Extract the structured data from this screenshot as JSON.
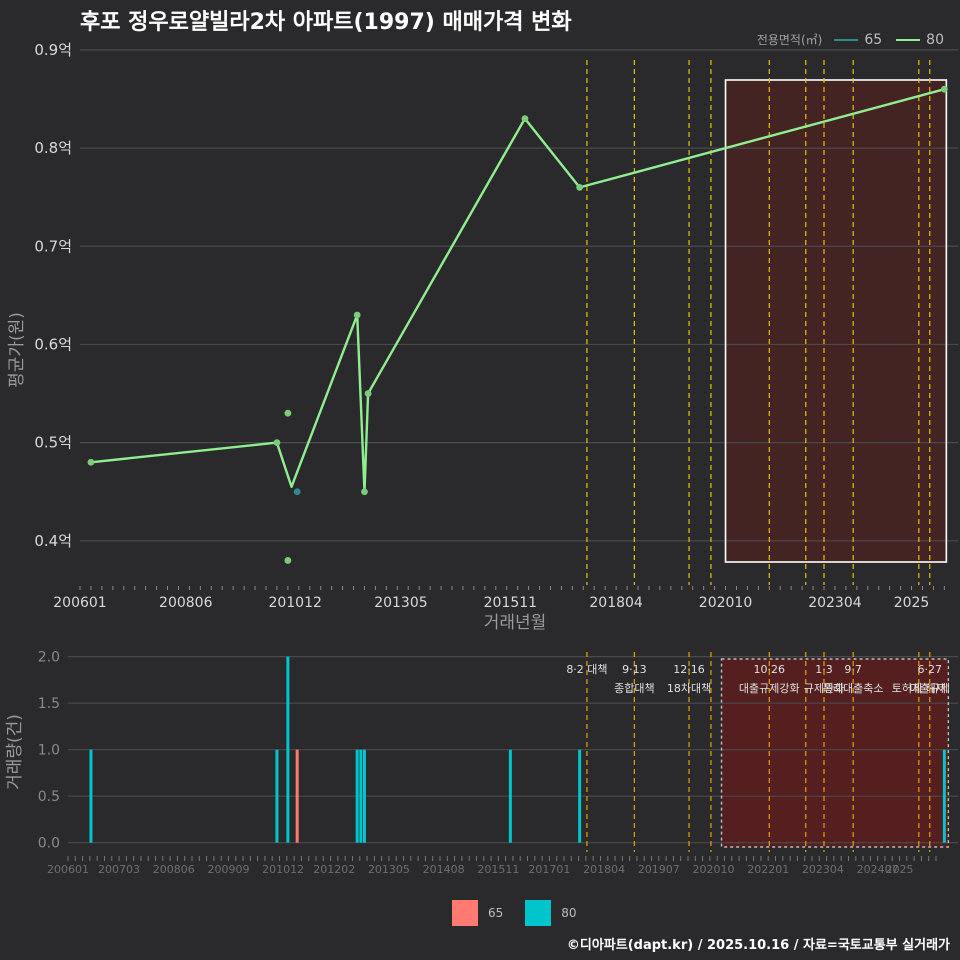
{
  "title": "후포 정우로얄빌라2차 아파트(1997) 매매가격 변화",
  "footer": "©디아파트(dapt.kr) / 2025.10.16 / 자료=국토교통부 실거래가",
  "colors": {
    "bg": "#2a2a2c",
    "grid": "#4a4a4d",
    "s65_price": "#2e8b8b",
    "s80_price": "#90ee90",
    "s65_volume": "#ff7b72",
    "s80_volume": "#00c5cd",
    "policy_line": "#e6c300",
    "highlight_fill": "#5a1e1e",
    "axis_text": "#d8d8d8"
  },
  "chart_data": [
    {
      "type": "line",
      "title": "평균가격",
      "xlabel": "거래년월",
      "ylabel": "평균가(원)",
      "ylim": [
        0.355,
        0.905
      ],
      "yticks": [
        0.4,
        0.5,
        0.6,
        0.7,
        0.8,
        0.9
      ],
      "ytick_labels": [
        "0.4억",
        "0.5억",
        "0.6억",
        "0.7억",
        "0.8억",
        "0.9억"
      ],
      "xticks": [
        "200601",
        "200806",
        "201012",
        "201305",
        "201511",
        "201804",
        "202010",
        "202304",
        "2025"
      ],
      "legend_title": "전용면적(㎡)",
      "legend_labels": [
        "65",
        "80"
      ],
      "series": [
        {
          "name": "65",
          "points": [
            [
              "2010-12",
              0.45
            ]
          ]
        },
        {
          "name": "80",
          "line": [
            [
              "2006-04",
              0.48
            ],
            [
              "2010-07",
              0.5
            ],
            [
              "2010-11",
              0.455
            ],
            [
              "2012-05",
              0.63
            ],
            [
              "2012-07",
              0.45
            ],
            [
              "2012-08",
              0.55
            ],
            [
              "2016-03",
              0.83
            ],
            [
              "2017-06",
              0.76
            ],
            [
              "2025-10",
              0.86
            ]
          ],
          "points": [
            [
              "2006-04",
              0.48
            ],
            [
              "2010-07",
              0.5
            ],
            [
              "2010-10",
              0.53
            ],
            [
              "2010-10",
              0.38
            ],
            [
              "2012-05",
              0.63
            ],
            [
              "2012-07",
              0.45
            ],
            [
              "2012-08",
              0.55
            ],
            [
              "2016-03",
              0.83
            ],
            [
              "2017-06",
              0.76
            ],
            [
              "2025-10",
              0.86
            ]
          ]
        }
      ]
    },
    {
      "type": "bar",
      "title": "거래량",
      "ylabel": "거래량(건)",
      "ylim": [
        -0.1,
        2.05
      ],
      "yticks": [
        0.0,
        0.5,
        1.0,
        1.5,
        2.0
      ],
      "ytick_labels": [
        "0.0",
        "0.5",
        "1.0",
        "1.5",
        "2.0"
      ],
      "xticks": [
        "200601",
        "200703",
        "200806",
        "200909",
        "201012",
        "201202",
        "201305",
        "201408",
        "201511",
        "201701",
        "201804",
        "201907",
        "202010",
        "202201",
        "202304",
        "202407",
        "2025"
      ],
      "legend_labels": [
        "65",
        "80"
      ],
      "series": [
        {
          "name": "65",
          "bars": [
            [
              "2010-12",
              1
            ]
          ]
        },
        {
          "name": "80",
          "bars": [
            [
              "2006-04",
              1
            ],
            [
              "2010-07",
              1
            ],
            [
              "2010-10",
              2
            ],
            [
              "2012-05",
              1
            ],
            [
              "2012-06",
              1
            ],
            [
              "2012-07",
              1
            ],
            [
              "2015-11",
              1
            ],
            [
              "2017-06",
              1
            ],
            [
              "2025-10",
              1
            ]
          ]
        }
      ]
    }
  ],
  "policies": [
    {
      "date": "2017-08",
      "label1": "8·2 대책",
      "label2": ""
    },
    {
      "date": "2018-09",
      "label1": "9·13",
      "label2": "종합대책"
    },
    {
      "date": "2019-12",
      "label1": "12·16",
      "label2": "18차대책"
    },
    {
      "date": "2020-06",
      "label1": "",
      "label2": ""
    },
    {
      "date": "2021-10",
      "label1": "10·26",
      "label2": "대출규제강화"
    },
    {
      "date": "2022-08",
      "label1": "",
      "label2": ""
    },
    {
      "date": "2023-01",
      "label1": "1·3",
      "label2": "규제완화"
    },
    {
      "date": "2023-09",
      "label1": "9·7",
      "label2": "특례대출축소"
    },
    {
      "date": "2025-03",
      "label1": "",
      "label2": "토허제 해제"
    },
    {
      "date": "2025-06",
      "label1": "6·27",
      "label2": "대출규제"
    }
  ],
  "highlight": {
    "start": "2020-10",
    "end": "2025-10"
  }
}
